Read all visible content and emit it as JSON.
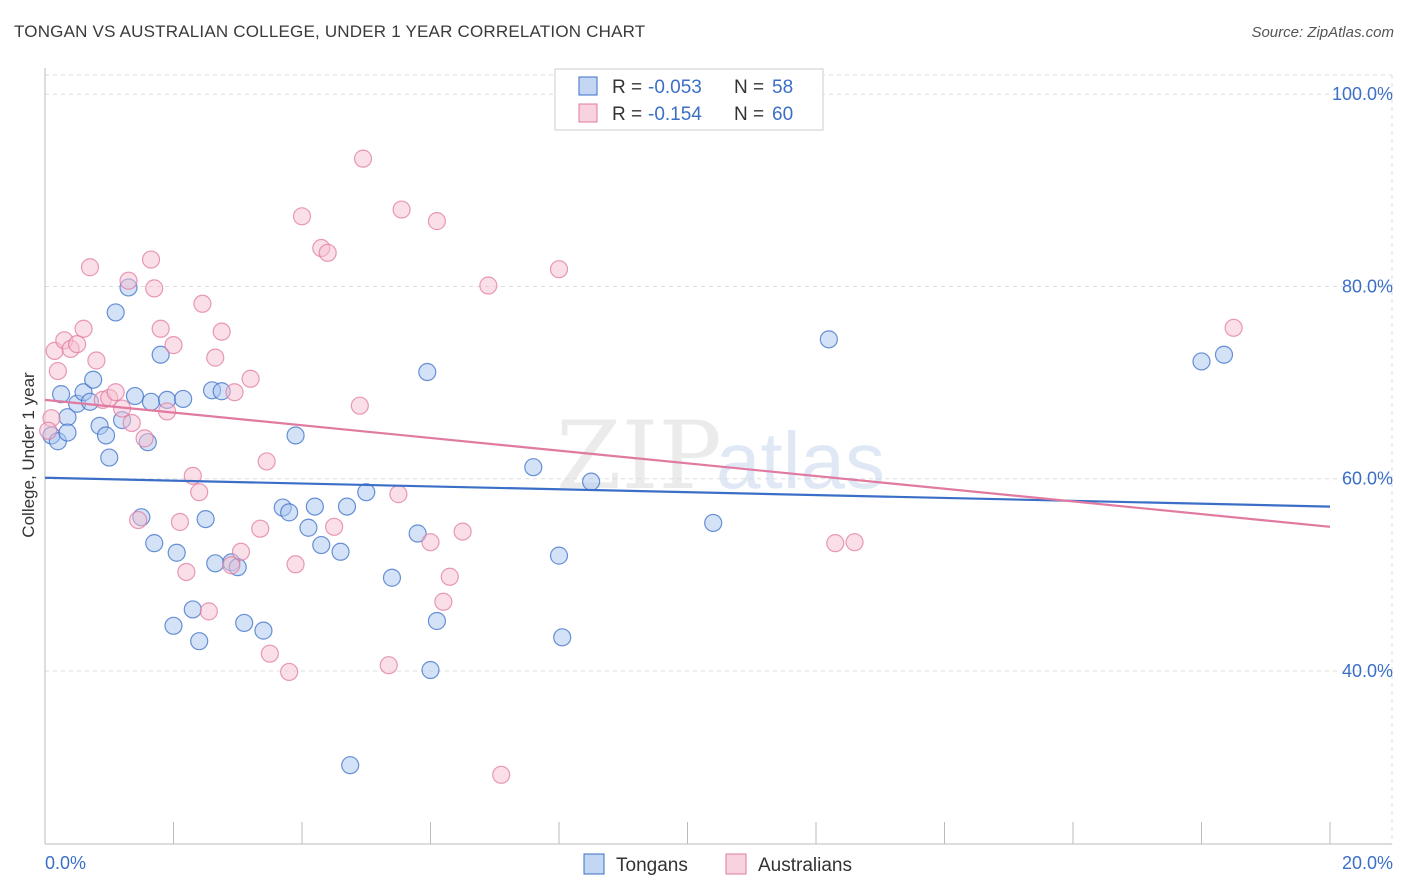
{
  "title": "TONGAN VS AUSTRALIAN COLLEGE, UNDER 1 YEAR CORRELATION CHART",
  "source": "Source: ZipAtlas.com",
  "watermark": {
    "zip": "ZIP",
    "atlas": "atlas"
  },
  "legend": {
    "rows": [
      {
        "r_label": "R = ",
        "r_value": "-0.053",
        "n_label": "N = ",
        "n_value": "58",
        "color": "#3b6fc7"
      },
      {
        "r_label": "R = ",
        "r_value": "-0.154",
        "n_label": "N = ",
        "n_value": "60",
        "color": "#e07aa0"
      }
    ]
  },
  "chart_data": {
    "type": "scatter",
    "title": "TONGAN VS AUSTRALIAN COLLEGE, UNDER 1 YEAR CORRELATION CHART",
    "xlabel": "",
    "ylabel": "College, Under 1 year",
    "xlim": [
      0,
      20
    ],
    "ylim": [
      22,
      102
    ],
    "x_tick_labels": [
      "0.0%",
      "20.0%"
    ],
    "y_ticks": [
      40,
      60,
      80,
      100
    ],
    "y_tick_labels": [
      "40.0%",
      "60.0%",
      "80.0%",
      "100.0%"
    ],
    "grid": true,
    "legend_position": "bottom",
    "series": [
      {
        "name": "Tongans",
        "color": "#3b6fc7",
        "fill": "#a9c6f0",
        "trend": {
          "x": [
            0,
            20
          ],
          "y": [
            60.1,
            57.1
          ]
        },
        "points": [
          [
            0.1,
            64.5
          ],
          [
            0.2,
            63.9
          ],
          [
            0.25,
            68.8
          ],
          [
            0.35,
            66.4
          ],
          [
            0.35,
            64.8
          ],
          [
            0.5,
            67.8
          ],
          [
            0.6,
            69.0
          ],
          [
            0.7,
            68.0
          ],
          [
            0.75,
            70.3
          ],
          [
            0.85,
            65.5
          ],
          [
            0.95,
            64.5
          ],
          [
            1.0,
            62.2
          ],
          [
            1.1,
            77.3
          ],
          [
            1.2,
            66.1
          ],
          [
            1.3,
            79.9
          ],
          [
            1.4,
            68.6
          ],
          [
            1.5,
            56.0
          ],
          [
            1.6,
            63.8
          ],
          [
            1.65,
            68.0
          ],
          [
            1.7,
            53.3
          ],
          [
            1.8,
            72.9
          ],
          [
            1.9,
            68.2
          ],
          [
            2.0,
            44.7
          ],
          [
            2.05,
            52.3
          ],
          [
            2.15,
            68.3
          ],
          [
            2.3,
            46.4
          ],
          [
            2.4,
            43.1
          ],
          [
            2.5,
            55.8
          ],
          [
            2.6,
            69.2
          ],
          [
            2.65,
            51.2
          ],
          [
            2.75,
            69.1
          ],
          [
            2.9,
            51.3
          ],
          [
            3.0,
            50.8
          ],
          [
            3.1,
            45.0
          ],
          [
            3.4,
            44.2
          ],
          [
            3.7,
            57.0
          ],
          [
            3.8,
            56.5
          ],
          [
            3.9,
            64.5
          ],
          [
            4.1,
            54.9
          ],
          [
            4.2,
            57.1
          ],
          [
            4.3,
            53.1
          ],
          [
            4.6,
            52.4
          ],
          [
            4.7,
            57.1
          ],
          [
            4.75,
            30.2
          ],
          [
            5.0,
            58.6
          ],
          [
            5.4,
            49.7
          ],
          [
            5.8,
            54.3
          ],
          [
            5.95,
            71.1
          ],
          [
            6.0,
            40.1
          ],
          [
            6.1,
            45.2
          ],
          [
            7.6,
            61.2
          ],
          [
            8.0,
            52.0
          ],
          [
            8.05,
            43.5
          ],
          [
            8.5,
            59.7
          ],
          [
            10.4,
            55.4
          ],
          [
            12.2,
            74.5
          ],
          [
            18.0,
            72.2
          ],
          [
            18.35,
            72.9
          ]
        ]
      },
      {
        "name": "Australians",
        "color": "#e07aa0",
        "fill": "#f6bfd2",
        "trend": {
          "x": [
            0,
            20
          ],
          "y": [
            68.2,
            55.0
          ]
        },
        "points": [
          [
            0.1,
            66.3
          ],
          [
            0.15,
            73.3
          ],
          [
            0.2,
            71.2
          ],
          [
            0.3,
            74.4
          ],
          [
            0.4,
            73.5
          ],
          [
            0.5,
            74.0
          ],
          [
            0.6,
            75.6
          ],
          [
            0.7,
            82.0
          ],
          [
            0.8,
            72.3
          ],
          [
            0.9,
            68.2
          ],
          [
            1.0,
            68.4
          ],
          [
            1.1,
            69.0
          ],
          [
            1.2,
            67.3
          ],
          [
            1.3,
            80.6
          ],
          [
            1.35,
            65.8
          ],
          [
            1.45,
            55.7
          ],
          [
            1.55,
            64.2
          ],
          [
            1.65,
            82.8
          ],
          [
            1.7,
            79.8
          ],
          [
            1.8,
            75.6
          ],
          [
            1.9,
            67.0
          ],
          [
            2.0,
            73.9
          ],
          [
            2.1,
            55.5
          ],
          [
            2.2,
            50.3
          ],
          [
            2.3,
            60.3
          ],
          [
            2.4,
            58.6
          ],
          [
            2.45,
            78.2
          ],
          [
            2.55,
            46.2
          ],
          [
            2.65,
            72.6
          ],
          [
            2.75,
            75.3
          ],
          [
            2.9,
            51.0
          ],
          [
            2.95,
            69.0
          ],
          [
            3.05,
            52.4
          ],
          [
            3.2,
            70.4
          ],
          [
            3.35,
            54.8
          ],
          [
            3.45,
            61.8
          ],
          [
            3.5,
            41.8
          ],
          [
            3.8,
            39.9
          ],
          [
            3.9,
            51.1
          ],
          [
            4.0,
            87.3
          ],
          [
            4.3,
            84.0
          ],
          [
            4.4,
            83.5
          ],
          [
            4.5,
            55.0
          ],
          [
            4.9,
            67.6
          ],
          [
            4.95,
            93.3
          ],
          [
            5.35,
            40.6
          ],
          [
            5.5,
            58.4
          ],
          [
            5.55,
            88.0
          ],
          [
            6.0,
            53.4
          ],
          [
            6.1,
            86.8
          ],
          [
            6.2,
            47.2
          ],
          [
            6.3,
            49.8
          ],
          [
            6.5,
            54.5
          ],
          [
            6.9,
            80.1
          ],
          [
            7.1,
            29.2
          ],
          [
            8.0,
            81.8
          ],
          [
            12.3,
            53.3
          ],
          [
            12.6,
            53.4
          ],
          [
            18.5,
            75.7
          ],
          [
            0.05,
            65.0
          ]
        ]
      }
    ]
  }
}
